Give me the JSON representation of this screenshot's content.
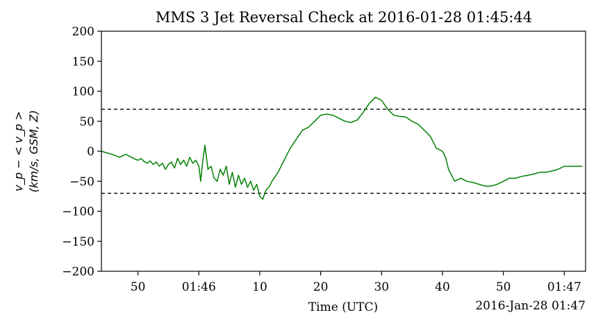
{
  "chart_data": {
    "type": "line",
    "title": "MMS 3 Jet Reversal Check at 2016-01-28 01:45:44",
    "xlabel": "Time (UTC)",
    "ylabel_line1": "v_p − < v_p >",
    "ylabel_line2": "(km/s, GSM, Z)",
    "date_label": "2016-Jan-28 01:47",
    "xlim_seconds_of_0145": [
      44,
      73.5
    ],
    "ylim": [
      -200,
      200
    ],
    "x_ticks": [
      {
        "s": 50,
        "label": "50"
      },
      {
        "s": 60,
        "label": "01:46"
      },
      {
        "s": 70,
        "label": "10"
      },
      {
        "s": 80,
        "label": "20"
      },
      {
        "s": 90,
        "label": "30"
      },
      {
        "s": 100,
        "label": "40"
      },
      {
        "s": 110,
        "label": "50"
      },
      {
        "s": 120,
        "label": "01:47"
      }
    ],
    "y_ticks": [
      {
        "v": 200,
        "label": "200"
      },
      {
        "v": 150,
        "label": "150"
      },
      {
        "v": 100,
        "label": "100"
      },
      {
        "v": 50,
        "label": "50"
      },
      {
        "v": 0,
        "label": "0"
      },
      {
        "v": -50,
        "label": "−50"
      },
      {
        "v": -100,
        "label": "−100"
      },
      {
        "v": -150,
        "label": "−150"
      },
      {
        "v": -200,
        "label": "−200"
      }
    ],
    "thresholds": [
      70,
      -70
    ],
    "line_color": "#008000",
    "threshold_color": "#000000",
    "series": [
      {
        "x": [
          44.0,
          45.0,
          46.0,
          47.0,
          48.0,
          48.5,
          49.5,
          50.0,
          50.5,
          51.0,
          51.5,
          52.0,
          52.5,
          53.0,
          53.5,
          54.0,
          54.5,
          55.0,
          55.5,
          56.0,
          56.5,
          57.0,
          57.5,
          58.0,
          58.5,
          59.0,
          59.5,
          60.0,
          60.3,
          60.6,
          61.0,
          61.5,
          62.0,
          62.5,
          63.0,
          63.5,
          64.0,
          64.5,
          65.0,
          65.5,
          66.0,
          66.5,
          67.0,
          67.5,
          68.0,
          68.5,
          69.0,
          69.5,
          70.0,
          70.5,
          71.0,
          71.5,
          72.0,
          73.0,
          74.0,
          75.0,
          76.0,
          77.0,
          78.0,
          79.0,
          80.0,
          81.0,
          82.0,
          83.0,
          84.0,
          85.0,
          86.0,
          87.0,
          88.0,
          89.0,
          90.0,
          91.0,
          92.0,
          93.0,
          94.0,
          95.0,
          96.0,
          97.0,
          98.0,
          99.0,
          100.0,
          100.5,
          101.0,
          102.0,
          103.0,
          104.0,
          105.0,
          106.0,
          107.0,
          108.0,
          109.0,
          110.0,
          111.0,
          112.0,
          113.0,
          114.0,
          115.0,
          116.0,
          117.0,
          118.0,
          119.0,
          120.0,
          121.0,
          122.0,
          123.0
        ],
        "values": [
          0,
          -3,
          -6,
          -10,
          -5,
          -8,
          -13,
          -15,
          -12,
          -17,
          -20,
          -16,
          -22,
          -18,
          -25,
          -20,
          -30,
          -22,
          -18,
          -28,
          -12,
          -22,
          -15,
          -25,
          -10,
          -20,
          -15,
          -25,
          -50,
          -20,
          10,
          -30,
          -25,
          -45,
          -50,
          -30,
          -40,
          -25,
          -55,
          -35,
          -60,
          -40,
          -55,
          -45,
          -60,
          -50,
          -65,
          -55,
          -75,
          -80,
          -65,
          -60,
          -50,
          -35,
          -15,
          5,
          20,
          35,
          40,
          50,
          60,
          62,
          60,
          55,
          50,
          48,
          52,
          65,
          80,
          90,
          85,
          70,
          60,
          58,
          57,
          50,
          45,
          35,
          25,
          5,
          0,
          -10,
          -30,
          -50,
          -45,
          -50,
          -52,
          -55,
          -58,
          -58,
          -55,
          -50,
          -45,
          -45,
          -42,
          -40,
          -38,
          -35,
          -35,
          -33,
          -30,
          -25,
          -25,
          -25,
          -25
        ]
      }
    ]
  }
}
